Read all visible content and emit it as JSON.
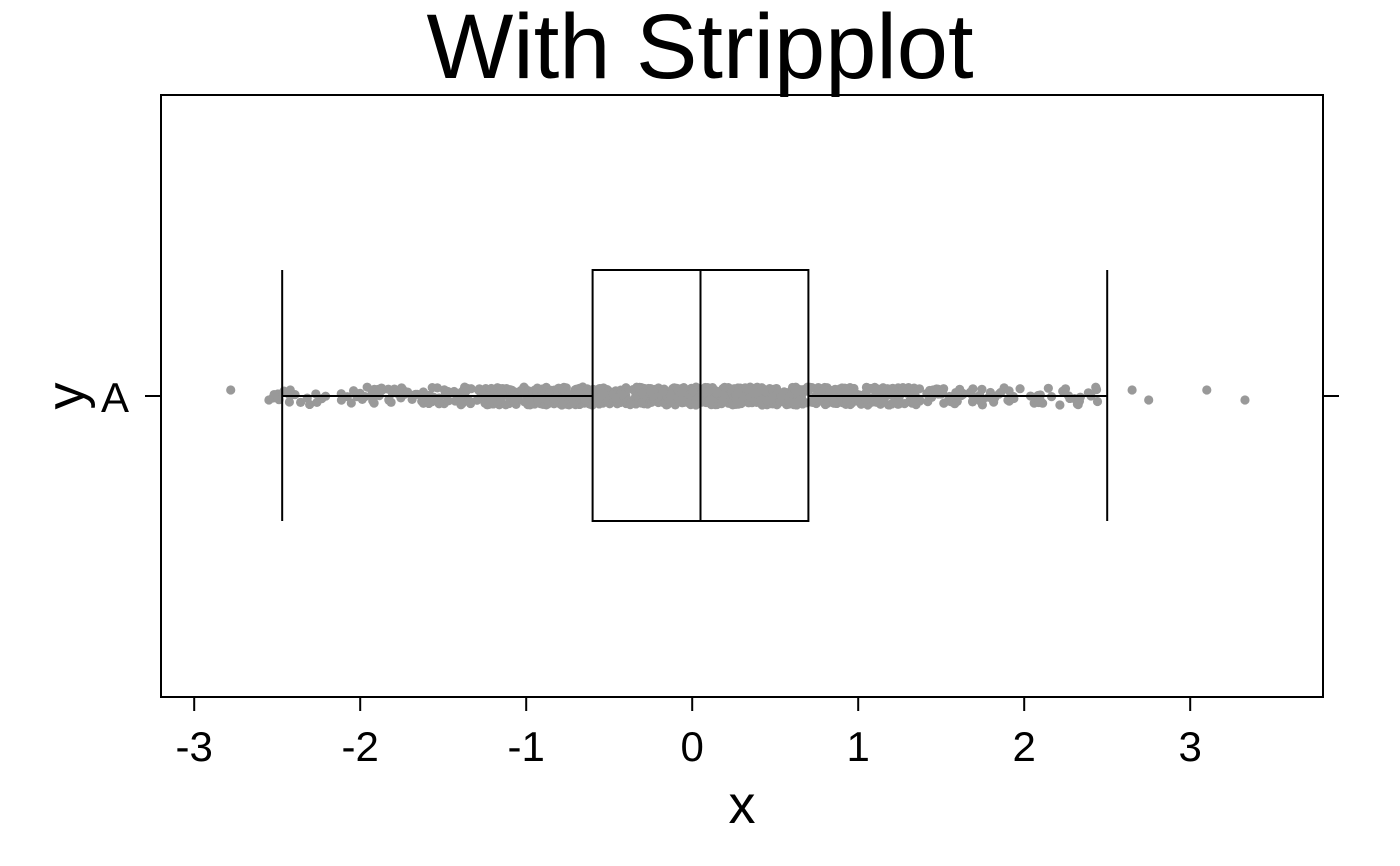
{
  "chart_data": {
    "type": "box",
    "title": "With Stripplot",
    "xlabel": "x",
    "ylabel": "y",
    "categories": [
      "A"
    ],
    "xlim": [
      -3.2,
      3.8
    ],
    "xticks": [
      -3,
      -2,
      -1,
      0,
      1,
      2,
      3
    ],
    "xtick_labels": [
      "-3",
      "-2",
      "-1",
      "0",
      "1",
      "2",
      "3"
    ],
    "box": {
      "category": "A",
      "q1": -0.6,
      "median": 0.05,
      "q3": 0.7,
      "whisker_low": -2.47,
      "whisker_high": 2.5
    },
    "strip": {
      "n_points": 1000,
      "visible_min": -2.78,
      "visible_max": 3.33,
      "outliers": [
        -2.78,
        -2.55,
        2.65,
        2.75,
        3.1,
        3.33
      ]
    },
    "colors": {
      "points": "#999999",
      "lines": "#000000",
      "background": "#ffffff"
    }
  }
}
